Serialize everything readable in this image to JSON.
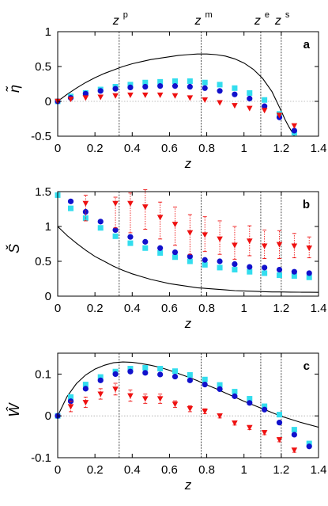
{
  "chart_data": [
    {
      "type": "scatter",
      "panel_label": "a",
      "xlabel": "z",
      "ylabel": "η̃",
      "xlim": [
        0,
        1.4
      ],
      "ylim": [
        -0.5,
        1.0
      ],
      "xticks": [
        "0",
        "0.2",
        "0.4",
        "0.6",
        "0.8",
        "1",
        "1.2",
        "1.4"
      ],
      "yticks": [
        "1",
        "0.5",
        "0",
        "-0.5"
      ],
      "ytick_values": [
        1,
        0.5,
        0,
        -0.5
      ],
      "zero_line": true,
      "vlines": [
        {
          "label": "z",
          "sup": "p",
          "x": 0.33
        },
        {
          "label": "z",
          "sup": "m",
          "x": 0.77
        },
        {
          "label": "z",
          "sup": "e",
          "x": 1.09
        },
        {
          "label": "z",
          "sup": "s",
          "x": 1.2
        }
      ],
      "curve": {
        "x": [
          0,
          0.05,
          0.1,
          0.15,
          0.2,
          0.25,
          0.3,
          0.35,
          0.4,
          0.45,
          0.5,
          0.55,
          0.6,
          0.65,
          0.7,
          0.75,
          0.8,
          0.85,
          0.9,
          0.95,
          1.0,
          1.05,
          1.1,
          1.15,
          1.2,
          1.22,
          1.24,
          1.26,
          1.27
        ],
        "y": [
          0,
          0.1,
          0.19,
          0.27,
          0.34,
          0.4,
          0.45,
          0.5,
          0.54,
          0.57,
          0.6,
          0.62,
          0.64,
          0.66,
          0.67,
          0.68,
          0.68,
          0.67,
          0.65,
          0.61,
          0.55,
          0.46,
          0.33,
          0.14,
          -0.14,
          -0.26,
          -0.36,
          -0.45,
          -0.5
        ]
      },
      "series": [
        {
          "name": "cyan",
          "color": "#33ddee",
          "marker": "square",
          "x": [
            0,
            0.07,
            0.15,
            0.23,
            0.31,
            0.39,
            0.47,
            0.55,
            0.63,
            0.71,
            0.79,
            0.87,
            0.95,
            1.03,
            1.11,
            1.19,
            1.27
          ],
          "y": [
            0,
            0.07,
            0.12,
            0.17,
            0.21,
            0.24,
            0.27,
            0.28,
            0.29,
            0.29,
            0.27,
            0.24,
            0.19,
            0.12,
            0.02,
            -0.18,
            -0.45
          ]
        },
        {
          "name": "blue",
          "color": "#1111cc",
          "marker": "circle",
          "x": [
            0,
            0.07,
            0.15,
            0.23,
            0.31,
            0.39,
            0.47,
            0.55,
            0.63,
            0.71,
            0.79,
            0.87,
            0.95,
            1.03,
            1.11,
            1.19,
            1.27
          ],
          "y": [
            0,
            0.05,
            0.11,
            0.15,
            0.18,
            0.2,
            0.21,
            0.22,
            0.22,
            0.21,
            0.19,
            0.15,
            0.1,
            0.04,
            -0.07,
            -0.23,
            -0.42
          ]
        },
        {
          "name": "red",
          "color": "#ee1111",
          "marker": "triangle-down",
          "x": [
            0,
            0.07,
            0.15,
            0.23,
            0.31,
            0.39,
            0.47,
            0.55,
            0.63,
            0.71,
            0.79,
            0.87,
            0.95,
            1.03,
            1.11,
            1.19,
            1.27
          ],
          "y": [
            0,
            0.03,
            0.05,
            0.06,
            0.08,
            0.09,
            0.09,
            0.09,
            0.08,
            0.05,
            0.02,
            -0.02,
            -0.06,
            -0.1,
            -0.13,
            -0.2,
            -0.35
          ]
        }
      ]
    },
    {
      "type": "scatter",
      "panel_label": "b",
      "xlabel": "z",
      "ylabel": "Š",
      "xlim": [
        0,
        1.4
      ],
      "ylim": [
        0,
        1.5
      ],
      "xticks": [
        "0",
        "0.2",
        "0.4",
        "0.6",
        "0.8",
        "1",
        "1.2",
        "1.4"
      ],
      "yticks": [
        "1.5",
        "1",
        "0.5",
        "0"
      ],
      "ytick_values": [
        1.5,
        1,
        0.5,
        0
      ],
      "zero_line": false,
      "vlines": [
        {
          "x": 0.33
        },
        {
          "x": 0.77
        },
        {
          "x": 1.09
        },
        {
          "x": 1.2
        }
      ],
      "curve": {
        "x": [
          0,
          0.05,
          0.1,
          0.15,
          0.2,
          0.25,
          0.3,
          0.35,
          0.4,
          0.45,
          0.5,
          0.55,
          0.6,
          0.65,
          0.7,
          0.75,
          0.8,
          0.85,
          0.9,
          0.95,
          1.0,
          1.05,
          1.1,
          1.15,
          1.2,
          1.25,
          1.3,
          1.35,
          1.4
        ],
        "y": [
          1.0,
          0.87,
          0.76,
          0.66,
          0.57,
          0.5,
          0.43,
          0.37,
          0.32,
          0.28,
          0.24,
          0.21,
          0.18,
          0.16,
          0.14,
          0.12,
          0.11,
          0.1,
          0.09,
          0.08,
          0.075,
          0.07,
          0.065,
          0.06,
          0.06,
          0.058,
          0.057,
          0.056,
          0.055
        ]
      },
      "series": [
        {
          "name": "cyan",
          "color": "#33ddee",
          "marker": "square",
          "x": [
            0,
            0.07,
            0.15,
            0.23,
            0.31,
            0.39,
            0.47,
            0.55,
            0.63,
            0.71,
            0.79,
            0.87,
            0.95,
            1.03,
            1.11,
            1.19,
            1.27,
            1.35
          ],
          "y": [
            1.45,
            1.26,
            1.12,
            0.98,
            0.86,
            0.76,
            0.69,
            0.62,
            0.56,
            0.5,
            0.45,
            0.41,
            0.38,
            0.35,
            0.33,
            0.3,
            0.29,
            0.27
          ]
        },
        {
          "name": "blue",
          "color": "#1111cc",
          "marker": "circle",
          "x": [
            0.07,
            0.15,
            0.23,
            0.31,
            0.39,
            0.47,
            0.55,
            0.63,
            0.71,
            0.79,
            0.87,
            0.95,
            1.03,
            1.11,
            1.19,
            1.27,
            1.35
          ],
          "y": [
            1.36,
            1.21,
            1.07,
            0.95,
            0.85,
            0.78,
            0.69,
            0.63,
            0.57,
            0.52,
            0.5,
            0.46,
            0.42,
            0.41,
            0.38,
            0.35,
            0.33
          ]
        },
        {
          "name": "red",
          "color": "#ee1111",
          "marker": "triangle-down",
          "x": [
            0.15,
            0.31,
            0.39,
            0.47,
            0.55,
            0.63,
            0.71,
            0.79,
            0.87,
            0.95,
            1.03,
            1.11,
            1.19,
            1.27,
            1.35
          ],
          "y": [
            1.33,
            1.33,
            1.33,
            1.28,
            1.13,
            1.03,
            0.91,
            0.88,
            0.82,
            0.73,
            0.79,
            0.72,
            0.74,
            0.72,
            0.69
          ],
          "err_lo": [
            1.08,
            0.98,
            0.91,
            0.96,
            0.82,
            0.73,
            0.6,
            0.64,
            0.6,
            0.53,
            0.58,
            0.54,
            0.54,
            0.55,
            0.55
          ],
          "err_hi": [
            1.45,
            1.42,
            1.48,
            1.53,
            1.35,
            1.28,
            1.17,
            1.14,
            1.08,
            1.0,
            1.01,
            0.95,
            0.94,
            0.9,
            0.85
          ]
        }
      ]
    },
    {
      "type": "scatter",
      "panel_label": "c",
      "xlabel": "z",
      "ylabel": "Ŵ",
      "xlim": [
        0,
        1.4
      ],
      "ylim": [
        -0.1,
        0.15
      ],
      "xticks": [
        "0",
        "0.2",
        "0.4",
        "0.6",
        "0.8",
        "1",
        "1.2",
        "1.4"
      ],
      "yticks": [
        "0.1",
        "0",
        "-0.1"
      ],
      "ytick_values": [
        0.1,
        0,
        -0.1
      ],
      "zero_line": true,
      "vlines": [
        {
          "x": 0.33
        },
        {
          "x": 0.77
        },
        {
          "x": 1.09
        },
        {
          "x": 1.2
        }
      ],
      "curve": {
        "x": [
          0,
          0.05,
          0.1,
          0.15,
          0.2,
          0.25,
          0.3,
          0.35,
          0.4,
          0.45,
          0.5,
          0.55,
          0.6,
          0.65,
          0.7,
          0.75,
          0.8,
          0.85,
          0.9,
          0.95,
          1.0,
          1.05,
          1.1,
          1.15,
          1.2,
          1.25,
          1.3,
          1.35,
          1.4
        ],
        "y": [
          0,
          0.046,
          0.077,
          0.098,
          0.112,
          0.121,
          0.127,
          0.129,
          0.128,
          0.125,
          0.121,
          0.116,
          0.109,
          0.101,
          0.093,
          0.084,
          0.074,
          0.065,
          0.055,
          0.045,
          0.035,
          0.026,
          0.017,
          0.008,
          -0.001,
          -0.008,
          -0.015,
          -0.021,
          -0.027
        ]
      },
      "series": [
        {
          "name": "cyan",
          "color": "#33ddee",
          "marker": "square",
          "x": [
            0,
            0.07,
            0.15,
            0.23,
            0.31,
            0.39,
            0.47,
            0.55,
            0.63,
            0.71,
            0.79,
            0.87,
            0.95,
            1.03,
            1.11,
            1.19,
            1.27,
            1.35
          ],
          "y": [
            0,
            0.045,
            0.075,
            0.093,
            0.106,
            0.113,
            0.115,
            0.113,
            0.107,
            0.098,
            0.087,
            0.074,
            0.058,
            0.041,
            0.023,
            0.003,
            -0.033,
            -0.066
          ]
        },
        {
          "name": "blue",
          "color": "#1111cc",
          "marker": "circle",
          "x": [
            0,
            0.07,
            0.15,
            0.23,
            0.31,
            0.39,
            0.47,
            0.55,
            0.63,
            0.71,
            0.79,
            0.87,
            0.95,
            1.03,
            1.11,
            1.19,
            1.27,
            1.35
          ],
          "y": [
            0,
            0.035,
            0.065,
            0.085,
            0.1,
            0.106,
            0.103,
            0.099,
            0.094,
            0.085,
            0.075,
            0.064,
            0.047,
            0.031,
            0.015,
            -0.016,
            -0.045,
            -0.073
          ]
        },
        {
          "name": "red",
          "color": "#ee1111",
          "marker": "triangle-down",
          "x": [
            0.07,
            0.15,
            0.23,
            0.31,
            0.39,
            0.47,
            0.55,
            0.63,
            0.71,
            0.79,
            0.87,
            0.95,
            1.03,
            1.11,
            1.19,
            1.27
          ],
          "y": [
            0.022,
            0.032,
            0.052,
            0.064,
            0.048,
            0.041,
            0.041,
            0.028,
            0.017,
            0.011,
            0.0,
            -0.017,
            -0.028,
            -0.04,
            -0.057,
            -0.082
          ],
          "err_lo": [
            0.01,
            0.02,
            0.04,
            0.05,
            0.035,
            0.03,
            0.03,
            0.02,
            0.01,
            0.005,
            -0.005,
            -0.022,
            -0.033,
            -0.045,
            -0.062,
            -0.087
          ],
          "err_hi": [
            0.035,
            0.045,
            0.065,
            0.078,
            0.062,
            0.052,
            0.052,
            0.036,
            0.024,
            0.017,
            0.005,
            -0.012,
            -0.023,
            -0.035,
            -0.052,
            -0.077
          ]
        }
      ]
    }
  ]
}
